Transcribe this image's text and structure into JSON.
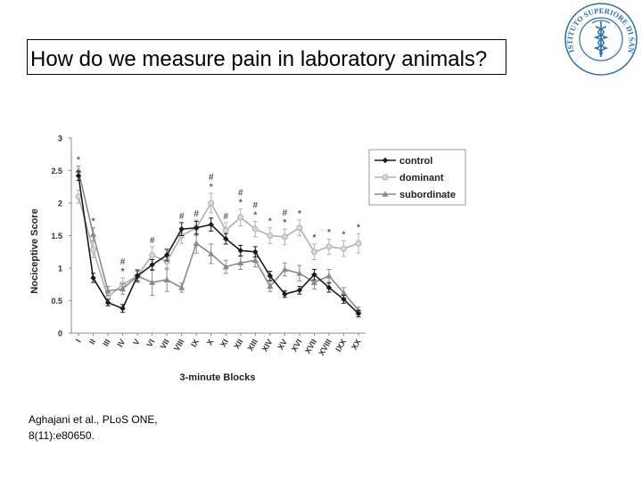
{
  "slide": {
    "title": "How do we measure pain in laboratory animals?",
    "citation_line1": "Aghajani et al., PLoS ONE,",
    "citation_line2": "8(11):e80650.",
    "logo_text": "ISTITUTO SUPERIORE DI SANITÀ"
  },
  "chart_data": {
    "type": "line",
    "xlabel": "3-minute Blocks",
    "ylabel": "Nociceptive Score",
    "ylim": [
      0,
      3
    ],
    "yticks": [
      "0",
      "0.5",
      "1",
      "1.5",
      "2",
      "2.5",
      "3"
    ],
    "categories": [
      "I",
      "II",
      "III",
      "IV",
      "V",
      "VI",
      "VII",
      "VIII",
      "IX",
      "X",
      "XI",
      "XII",
      "XIII",
      "XIV",
      "XV",
      "XVI",
      "XVII",
      "XVIII",
      "IXX",
      "XX"
    ],
    "legend_position": "top-right",
    "series": [
      {
        "name": "control",
        "color": "#1a1a1a",
        "marker": "diamond",
        "values": [
          2.42,
          0.85,
          0.47,
          0.38,
          0.88,
          1.05,
          1.2,
          1.6,
          1.62,
          1.67,
          1.45,
          1.27,
          1.25,
          0.88,
          0.6,
          0.66,
          0.9,
          0.7,
          0.52,
          0.3
        ],
        "errors": [
          0.07,
          0.07,
          0.05,
          0.06,
          0.08,
          0.08,
          0.09,
          0.1,
          0.1,
          0.1,
          0.08,
          0.08,
          0.08,
          0.07,
          0.05,
          0.06,
          0.08,
          0.07,
          0.06,
          0.05
        ]
      },
      {
        "name": "dominant",
        "color": "#b0b0b0",
        "marker": "circle",
        "values": [
          2.1,
          1.28,
          0.55,
          0.75,
          0.88,
          1.2,
          1.1,
          1.5,
          1.62,
          2.0,
          1.58,
          1.78,
          1.6,
          1.5,
          1.48,
          1.62,
          1.25,
          1.33,
          1.3,
          1.38
        ],
        "errors": [
          0.1,
          0.12,
          0.08,
          0.1,
          0.1,
          0.13,
          0.12,
          0.12,
          0.12,
          0.15,
          0.12,
          0.13,
          0.12,
          0.12,
          0.12,
          0.12,
          0.12,
          0.12,
          0.12,
          0.15
        ]
      },
      {
        "name": "subordinate",
        "color": "#8a8a8a",
        "marker": "triangle",
        "values": [
          2.5,
          1.52,
          0.65,
          0.68,
          0.88,
          0.78,
          0.82,
          0.7,
          1.38,
          1.22,
          1.02,
          1.08,
          1.12,
          0.72,
          0.98,
          0.92,
          0.78,
          0.88,
          0.62,
          0.35
        ],
        "errors": [
          0.07,
          0.1,
          0.07,
          0.08,
          0.1,
          0.2,
          0.18,
          0.07,
          0.15,
          0.15,
          0.1,
          0.1,
          0.1,
          0.08,
          0.1,
          0.12,
          0.1,
          0.1,
          0.08,
          0.05
        ]
      }
    ],
    "annotations": [
      {
        "index": 0,
        "marks": [
          "*"
        ]
      },
      {
        "index": 1,
        "marks": [
          "*"
        ]
      },
      {
        "index": 3,
        "marks": [
          "#",
          "*"
        ]
      },
      {
        "index": 5,
        "marks": [
          "#"
        ]
      },
      {
        "index": 7,
        "marks": [
          "#"
        ]
      },
      {
        "index": 8,
        "marks": [
          "#"
        ]
      },
      {
        "index": 9,
        "marks": [
          "#",
          "*"
        ]
      },
      {
        "index": 10,
        "marks": [
          "#"
        ]
      },
      {
        "index": 11,
        "marks": [
          "#",
          "*"
        ]
      },
      {
        "index": 12,
        "marks": [
          "#",
          "*"
        ]
      },
      {
        "index": 13,
        "marks": [
          "*"
        ]
      },
      {
        "index": 14,
        "marks": [
          "#",
          "*"
        ]
      },
      {
        "index": 15,
        "marks": [
          "*"
        ]
      },
      {
        "index": 16,
        "marks": [
          "*"
        ]
      },
      {
        "index": 17,
        "marks": [
          "*"
        ]
      },
      {
        "index": 18,
        "marks": [
          "*"
        ]
      },
      {
        "index": 19,
        "marks": [
          "*"
        ]
      }
    ]
  }
}
